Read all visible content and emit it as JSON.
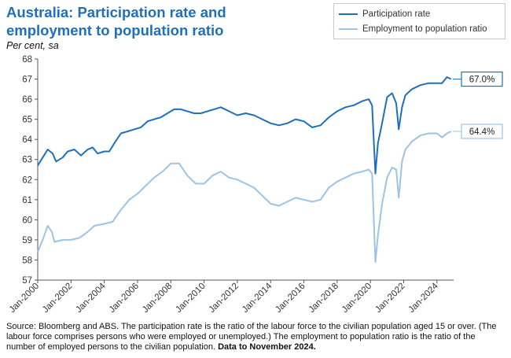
{
  "title": "Australia: Participation rate and employment to population ratio",
  "unit_label": "Per cent, sa",
  "footer": {
    "source": "Source: Bloomberg and ABS.  The participation rate is the ratio of the labour force to the civilian population aged 15 or over.  (The labour force comprises persons who were employed or unemployed.)  The employment to population ratio is the ratio of the number of employed persons to the civilian population.",
    "data_note": "Data to November 2024."
  },
  "colors": {
    "participation": "#1f6fba",
    "employment": "#9dc3e6",
    "axis": "#555555",
    "title": "#1f6fba"
  },
  "chart_data": {
    "type": "line",
    "title": "Australia: Participation rate and employment to population ratio",
    "ylabel": "Per cent, sa",
    "xlabel": "",
    "ylim": [
      57,
      68
    ],
    "yticks": [
      57,
      58,
      59,
      60,
      61,
      62,
      63,
      64,
      65,
      66,
      67,
      68
    ],
    "xlim": [
      2000.0,
      2025.0
    ],
    "xticks": [
      {
        "x": 2000,
        "label": "Jan-2000"
      },
      {
        "x": 2002,
        "label": "Jan-2002"
      },
      {
        "x": 2004,
        "label": "Jan-2004"
      },
      {
        "x": 2006,
        "label": "Jan-2006"
      },
      {
        "x": 2008,
        "label": "Jan-2008"
      },
      {
        "x": 2010,
        "label": "Jan-2010"
      },
      {
        "x": 2012,
        "label": "Jan-2012"
      },
      {
        "x": 2014,
        "label": "Jan-2014"
      },
      {
        "x": 2016,
        "label": "Jan-2016"
      },
      {
        "x": 2018,
        "label": "Jan-2018"
      },
      {
        "x": 2020,
        "label": "Jan-2020"
      },
      {
        "x": 2022,
        "label": "Jan-2022"
      },
      {
        "x": 2024,
        "label": "Jan-2024"
      }
    ],
    "legend_position": "top-right",
    "series": [
      {
        "name": "Participation rate",
        "end_label": "67.0%",
        "points": [
          [
            2000.0,
            62.7
          ],
          [
            2000.3,
            63.1
          ],
          [
            2000.6,
            63.5
          ],
          [
            2000.9,
            63.3
          ],
          [
            2001.1,
            62.9
          ],
          [
            2001.5,
            63.1
          ],
          [
            2001.8,
            63.4
          ],
          [
            2002.2,
            63.5
          ],
          [
            2002.6,
            63.2
          ],
          [
            2003.0,
            63.5
          ],
          [
            2003.3,
            63.6
          ],
          [
            2003.6,
            63.3
          ],
          [
            2004.0,
            63.4
          ],
          [
            2004.3,
            63.4
          ],
          [
            2004.6,
            63.8
          ],
          [
            2005.0,
            64.3
          ],
          [
            2005.4,
            64.4
          ],
          [
            2005.8,
            64.5
          ],
          [
            2006.2,
            64.6
          ],
          [
            2006.6,
            64.9
          ],
          [
            2007.0,
            65.0
          ],
          [
            2007.4,
            65.1
          ],
          [
            2007.8,
            65.3
          ],
          [
            2008.2,
            65.5
          ],
          [
            2008.6,
            65.5
          ],
          [
            2009.0,
            65.4
          ],
          [
            2009.4,
            65.3
          ],
          [
            2009.8,
            65.3
          ],
          [
            2010.2,
            65.4
          ],
          [
            2010.6,
            65.5
          ],
          [
            2011.0,
            65.6
          ],
          [
            2011.5,
            65.4
          ],
          [
            2012.0,
            65.2
          ],
          [
            2012.5,
            65.3
          ],
          [
            2013.0,
            65.2
          ],
          [
            2013.5,
            65.0
          ],
          [
            2014.0,
            64.8
          ],
          [
            2014.5,
            64.7
          ],
          [
            2015.0,
            64.8
          ],
          [
            2015.5,
            65.0
          ],
          [
            2016.0,
            64.9
          ],
          [
            2016.5,
            64.6
          ],
          [
            2017.0,
            64.7
          ],
          [
            2017.5,
            65.1
          ],
          [
            2018.0,
            65.4
          ],
          [
            2018.5,
            65.6
          ],
          [
            2019.0,
            65.7
          ],
          [
            2019.5,
            65.9
          ],
          [
            2019.9,
            66.0
          ],
          [
            2020.1,
            65.7
          ],
          [
            2020.3,
            62.3
          ],
          [
            2020.45,
            63.8
          ],
          [
            2020.7,
            64.8
          ],
          [
            2021.0,
            66.1
          ],
          [
            2021.3,
            66.3
          ],
          [
            2021.55,
            65.8
          ],
          [
            2021.7,
            64.5
          ],
          [
            2021.9,
            65.6
          ],
          [
            2022.1,
            66.2
          ],
          [
            2022.5,
            66.5
          ],
          [
            2023.0,
            66.7
          ],
          [
            2023.5,
            66.8
          ],
          [
            2024.0,
            66.8
          ],
          [
            2024.3,
            66.8
          ],
          [
            2024.6,
            67.1
          ],
          [
            2024.85,
            67.0
          ]
        ]
      },
      {
        "name": "Employment to population ratio",
        "end_label": "64.4%",
        "points": [
          [
            2000.0,
            58.4
          ],
          [
            2000.3,
            59.0
          ],
          [
            2000.6,
            59.7
          ],
          [
            2000.85,
            59.4
          ],
          [
            2001.0,
            58.9
          ],
          [
            2001.5,
            59.0
          ],
          [
            2002.0,
            59.0
          ],
          [
            2002.5,
            59.1
          ],
          [
            2003.0,
            59.4
          ],
          [
            2003.4,
            59.7
          ],
          [
            2004.0,
            59.8
          ],
          [
            2004.5,
            59.9
          ],
          [
            2005.0,
            60.5
          ],
          [
            2005.5,
            61.0
          ],
          [
            2006.0,
            61.3
          ],
          [
            2006.5,
            61.7
          ],
          [
            2007.0,
            62.1
          ],
          [
            2007.5,
            62.4
          ],
          [
            2008.0,
            62.8
          ],
          [
            2008.5,
            62.8
          ],
          [
            2009.0,
            62.2
          ],
          [
            2009.5,
            61.8
          ],
          [
            2010.0,
            61.8
          ],
          [
            2010.5,
            62.2
          ],
          [
            2011.0,
            62.4
          ],
          [
            2011.5,
            62.1
          ],
          [
            2012.0,
            62.0
          ],
          [
            2012.5,
            61.8
          ],
          [
            2013.0,
            61.6
          ],
          [
            2013.5,
            61.2
          ],
          [
            2014.0,
            60.8
          ],
          [
            2014.5,
            60.7
          ],
          [
            2015.0,
            60.9
          ],
          [
            2015.5,
            61.1
          ],
          [
            2016.0,
            61.0
          ],
          [
            2016.5,
            60.9
          ],
          [
            2017.0,
            61.0
          ],
          [
            2017.5,
            61.6
          ],
          [
            2018.0,
            61.9
          ],
          [
            2018.5,
            62.1
          ],
          [
            2019.0,
            62.3
          ],
          [
            2019.5,
            62.4
          ],
          [
            2019.9,
            62.5
          ],
          [
            2020.1,
            62.3
          ],
          [
            2020.3,
            57.9
          ],
          [
            2020.45,
            59.2
          ],
          [
            2020.7,
            60.8
          ],
          [
            2021.0,
            62.1
          ],
          [
            2021.3,
            62.6
          ],
          [
            2021.55,
            62.5
          ],
          [
            2021.7,
            61.1
          ],
          [
            2021.9,
            62.9
          ],
          [
            2022.1,
            63.5
          ],
          [
            2022.5,
            63.9
          ],
          [
            2023.0,
            64.2
          ],
          [
            2023.5,
            64.3
          ],
          [
            2024.0,
            64.3
          ],
          [
            2024.3,
            64.1
          ],
          [
            2024.6,
            64.3
          ],
          [
            2024.85,
            64.4
          ]
        ]
      }
    ]
  }
}
